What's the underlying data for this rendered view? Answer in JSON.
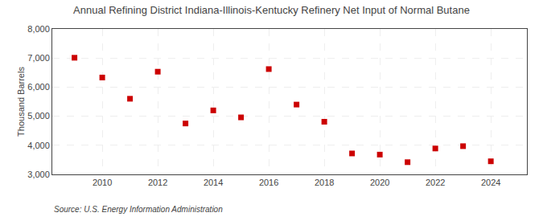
{
  "chart_data": {
    "type": "scatter",
    "title": "Annual Refining District Indiana-Illinois-Kentucky Refinery Net Input of Normal Butane",
    "ylabel": "Thousand Barrels",
    "source": "Source: U.S. Energy Information Administration",
    "x": [
      2009,
      2010,
      2011,
      2012,
      2013,
      2014,
      2015,
      2016,
      2017,
      2018,
      2019,
      2020,
      2021,
      2022,
      2023,
      2024
    ],
    "values": [
      7010,
      6330,
      5600,
      6530,
      4750,
      5200,
      4960,
      6620,
      5400,
      4810,
      3720,
      3680,
      3420,
      3890,
      3970,
      3450
    ],
    "color": "#cc0000",
    "marker": "square",
    "xlim": [
      2008.2,
      2025.3
    ],
    "xticks": [
      2010,
      2012,
      2014,
      2016,
      2018,
      2020,
      2022,
      2024
    ],
    "ylim": [
      3000,
      8000
    ],
    "yticks": [
      {
        "value": 3000,
        "label": "3,000"
      },
      {
        "value": 4000,
        "label": "4,000"
      },
      {
        "value": 5000,
        "label": "5,000"
      },
      {
        "value": 6000,
        "label": "6,000"
      },
      {
        "value": 7000,
        "label": "7,000"
      },
      {
        "value": 8000,
        "label": "8,000"
      }
    ],
    "grid": true
  }
}
